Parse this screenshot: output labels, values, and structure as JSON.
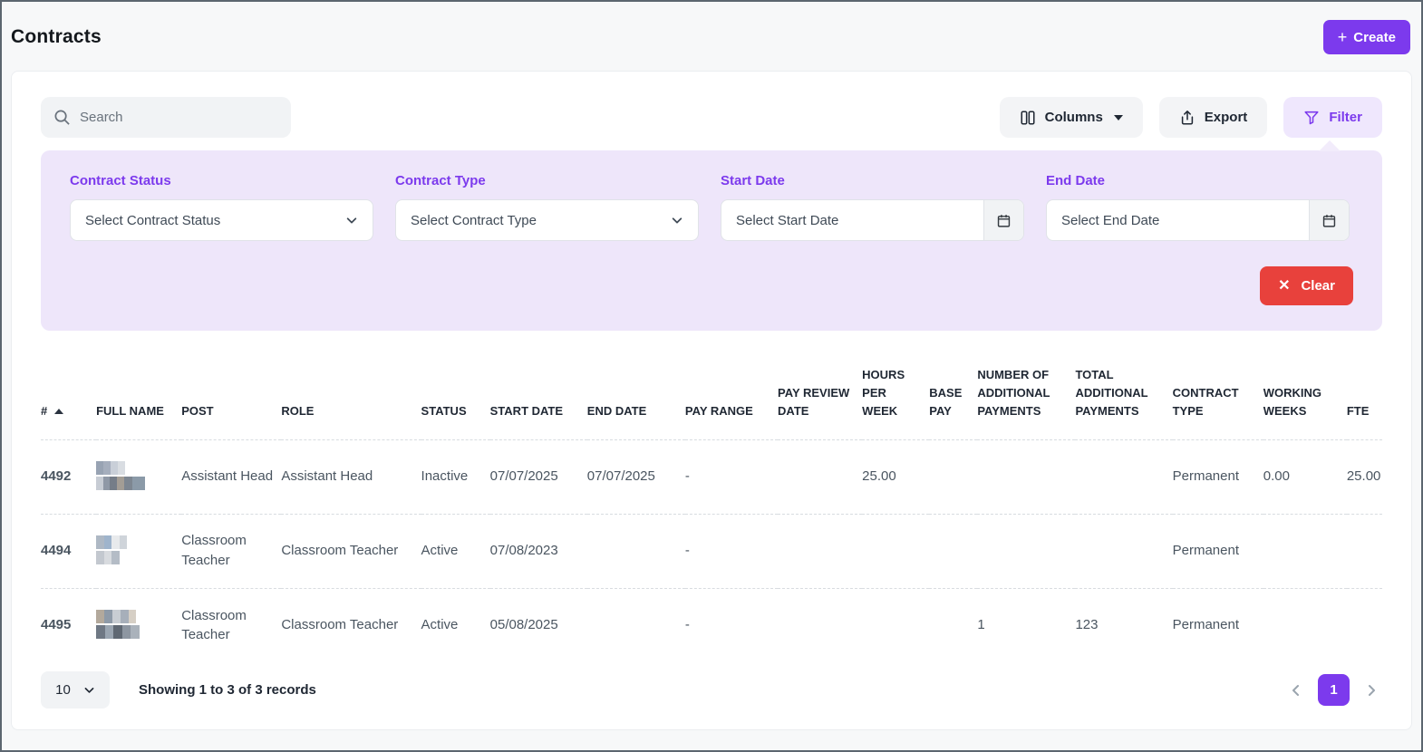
{
  "page": {
    "title": "Contracts"
  },
  "header": {
    "create_label": "Create",
    "create_icon": "+"
  },
  "toolbar": {
    "search_placeholder": "Search",
    "columns_label": "Columns",
    "export_label": "Export",
    "filter_label": "Filter"
  },
  "filter_panel": {
    "fields": [
      {
        "label": "Contract Status",
        "placeholder": "Select Contract Status",
        "type": "select"
      },
      {
        "label": "Contract Type",
        "placeholder": "Select Contract Type",
        "type": "select"
      },
      {
        "label": "Start Date",
        "placeholder": "Select Start Date",
        "type": "date"
      },
      {
        "label": "End Date",
        "placeholder": "Select End Date",
        "type": "date"
      }
    ],
    "clear_label": "Clear",
    "clear_icon": "✕"
  },
  "table": {
    "columns": [
      "#",
      "FULL NAME",
      "POST",
      "ROLE",
      "STATUS",
      "START DATE",
      "END DATE",
      "PAY RANGE",
      "PAY REVIEW DATE",
      "HOURS PER WEEK",
      "BASE PAY",
      "NUMBER OF ADDITIONAL PAYMENTS",
      "TOTAL ADDITIONAL PAYMENTS",
      "CONTRACT TYPE",
      "WORKING WEEKS",
      "FTE"
    ],
    "sort": {
      "column": "#",
      "direction": "asc"
    },
    "rows": [
      {
        "id": "4492",
        "full_name_redacted": true,
        "post": "Assistant Head",
        "role": "Assistant Head",
        "status": "Inactive",
        "start_date": "07/07/2025",
        "end_date": "07/07/2025",
        "pay_range": "-",
        "pay_review_date": "",
        "hours_per_week": "25.00",
        "base_pay": "",
        "num_additional_payments": "",
        "total_additional_payments": "",
        "contract_type": "Permanent",
        "working_weeks": "0.00",
        "fte": "25.00"
      },
      {
        "id": "4494",
        "full_name_redacted": true,
        "post": "Classroom Teacher",
        "role": "Classroom Teacher",
        "status": "Active",
        "start_date": "07/08/2023",
        "end_date": "",
        "pay_range": "-",
        "pay_review_date": "",
        "hours_per_week": "",
        "base_pay": "",
        "num_additional_payments": "",
        "total_additional_payments": "",
        "contract_type": "Permanent",
        "working_weeks": "",
        "fte": ""
      },
      {
        "id": "4495",
        "full_name_redacted": true,
        "post": "Classroom Teacher",
        "role": "Classroom Teacher",
        "status": "Active",
        "start_date": "05/08/2025",
        "end_date": "",
        "pay_range": "-",
        "pay_review_date": "",
        "hours_per_week": "",
        "base_pay": "",
        "num_additional_payments": "1",
        "total_additional_payments": "123",
        "contract_type": "Permanent",
        "working_weeks": "",
        "fte": ""
      }
    ]
  },
  "pagination": {
    "page_size": "10",
    "summary": "Showing 1 to 3 of 3 records",
    "current_page": "1"
  },
  "colors": {
    "accent": "#7c3aed",
    "accent_soft": "#efe7fd",
    "panel": "#eee6fa",
    "danger": "#e8413c"
  }
}
